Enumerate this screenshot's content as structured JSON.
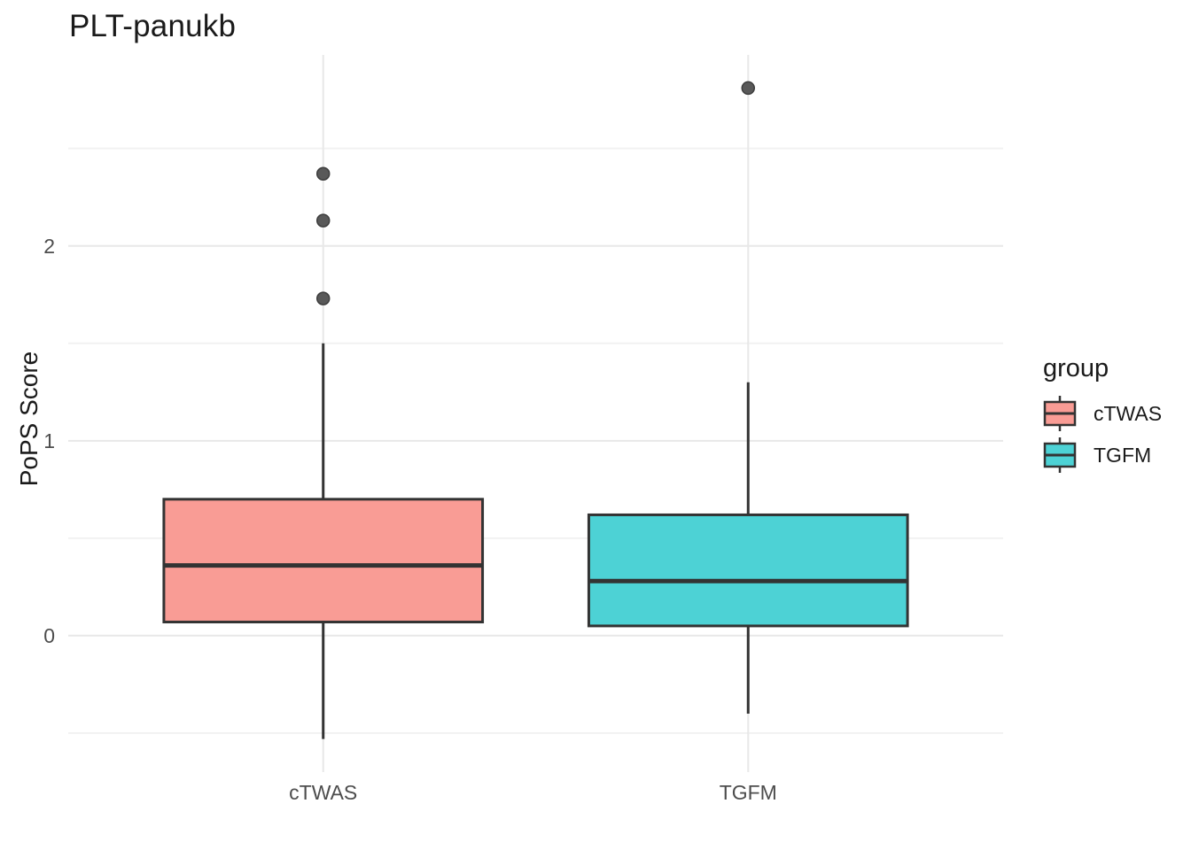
{
  "chart_data": {
    "type": "boxplot",
    "title": "PLT-panukb",
    "xlabel": "",
    "ylabel": "PoPS Score",
    "categories": [
      "cTWAS",
      "TGFM"
    ],
    "y_axis": {
      "major_ticks": [
        0,
        1,
        2
      ],
      "major_tick_labels": [
        "0",
        "1",
        "2"
      ],
      "minor_ticks": [
        -0.5,
        0.5,
        1.5,
        2.5
      ],
      "ylim": [
        -0.7,
        2.98
      ],
      "grid": "on"
    },
    "legend": {
      "title": "group",
      "position": "right",
      "entries": [
        {
          "label": "cTWAS",
          "color": "#F99C95"
        },
        {
          "label": "TGFM",
          "color": "#4DD2D5"
        }
      ]
    },
    "series": [
      {
        "name": "cTWAS",
        "color": "#F99C95",
        "stats": {
          "whisker_low": -0.53,
          "q1": 0.07,
          "median": 0.36,
          "q3": 0.7,
          "whisker_high": 1.5
        },
        "outliers": [
          1.73,
          2.13,
          2.37
        ]
      },
      {
        "name": "TGFM",
        "color": "#4DD2D5",
        "stats": {
          "whisker_low": -0.4,
          "q1": 0.05,
          "median": 0.28,
          "q3": 0.62,
          "whisker_high": 1.3
        },
        "outliers": [
          2.81
        ]
      }
    ],
    "style": {
      "box_border_color": "#333333",
      "median_color": "#333333",
      "whisker_color": "#333333",
      "outlier_color": "#595959",
      "outlier_stroke": "#3d3d3d",
      "grid_major_color": "#E8E8E8",
      "grid_minor_color": "#F2F2F2",
      "tick_label_color": "#4D4D4D",
      "title_color": "#1A1A1A",
      "background": "#FFFFFF"
    }
  }
}
